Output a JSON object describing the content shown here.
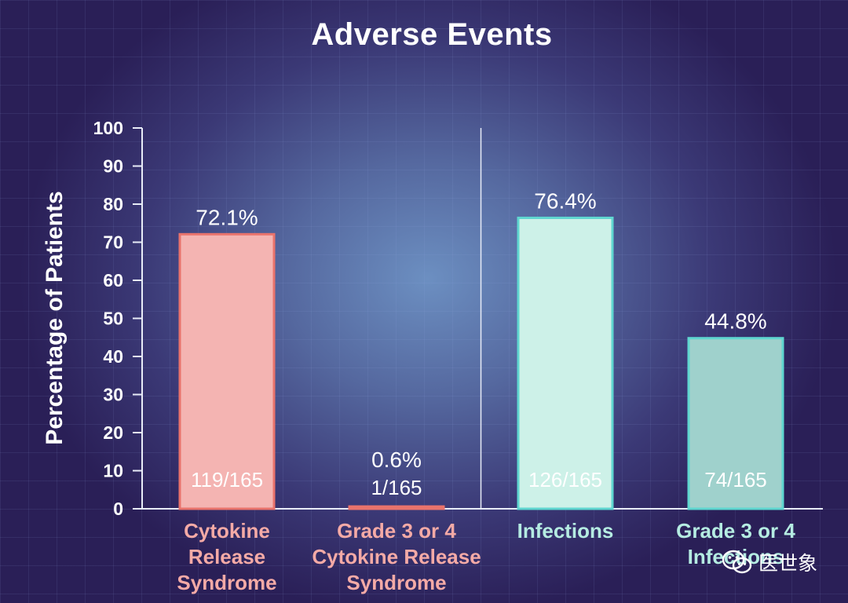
{
  "chart_data": {
    "type": "bar",
    "title": "Adverse Events",
    "ylabel": "Percentage of Patients",
    "xlabel": "",
    "ylim": [
      0,
      100
    ],
    "yticks": [
      0,
      10,
      20,
      30,
      40,
      50,
      60,
      70,
      80,
      90,
      100
    ],
    "grid": false,
    "categories": [
      [
        "Cytokine",
        "Release",
        "Syndrome"
      ],
      [
        "Grade 3 or 4",
        "Cytokine Release",
        "Syndrome"
      ],
      [
        "Infections"
      ],
      [
        "Grade 3 or 4",
        "Infections"
      ]
    ],
    "values": [
      72.1,
      0.6,
      76.4,
      44.8
    ],
    "value_labels": [
      "72.1%",
      "0.6%",
      "76.4%",
      "44.8%"
    ],
    "counts": [
      "119/165",
      "1/165",
      "126/165",
      "74/165"
    ],
    "bar_colors": [
      "#f4b4b2",
      "#f4b4b2",
      "#cdf1e8",
      "#9fd1cc"
    ],
    "bar_edge_colors": [
      "#e9736c",
      "#e9736c",
      "#5fd6d0",
      "#5fd6d0"
    ],
    "category_colors": [
      "#f4aaa6",
      "#f4aaa6",
      "#b5ece2",
      "#b5ece2"
    ],
    "group_divider_after": 1
  },
  "watermark": {
    "text": "医世象",
    "icon": "wechat-icon"
  }
}
